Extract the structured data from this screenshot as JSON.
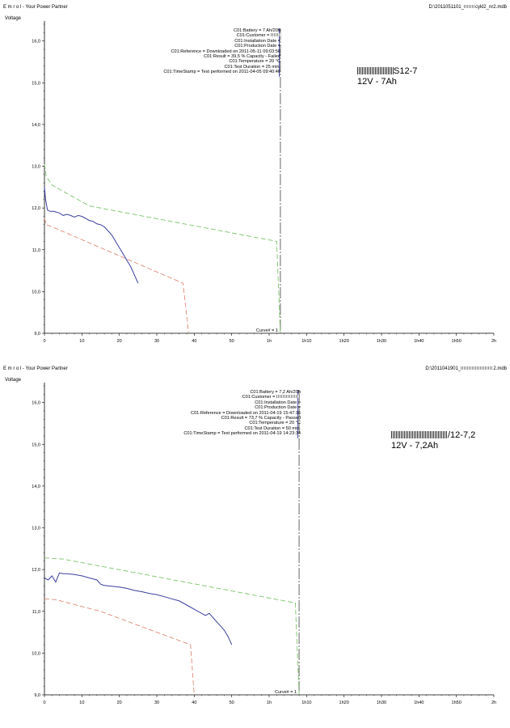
{
  "chart_data": [
    {
      "type": "line",
      "header_left": "E m r o l  -  Your Power Partner",
      "header_right": "D:\\2011051101_",
      "header_right_suffix": "cykl2_nr2.mdb",
      "ylabel": "Voltage",
      "ylim": [
        9.0,
        16.4
      ],
      "xlim": [
        0,
        120
      ],
      "y_ticks": [
        9,
        10,
        11,
        12,
        13,
        14,
        15,
        16
      ],
      "y_tick_labels": [
        "9,0",
        "10,0",
        "11,0",
        "12,0",
        "13,0",
        "14,0",
        "15,0",
        "16,0"
      ],
      "x_ticks": [
        0,
        10,
        20,
        30,
        40,
        50,
        60,
        70,
        80,
        90,
        100,
        110,
        120
      ],
      "x_tick_labels": [
        "0",
        "10",
        "20",
        "30",
        "40",
        "50",
        "1h",
        "1h10",
        "1h20",
        "1h30",
        "1h40",
        "1h50",
        "2h"
      ],
      "info_lines": [
        "C01:Battery = 7 Ah/20h",
        "C01:Customer = ",
        "C01:Installation Date = ",
        "C01:Production Date = ",
        "C01:Reference = Downloaded on 2011-05-11 09:03:56",
        "C01:Result = 39,5 % Capacity - Failed",
        "C01:Temperature = 20 °C",
        "C01:Test Duration = 25 min.",
        "C01:TimeStamp = Test performed on 2011-04-05 09:40:46"
      ],
      "curve_label": "Curve# = 1",
      "marker_x": 63,
      "handwritten_line1_suffix": "S12-7",
      "handwritten_line2": "12V - 7Ah",
      "series": [
        {
          "color": "#3b3fa0",
          "dash": "solid",
          "x": [
            0,
            0.3,
            0.8,
            1.5,
            2.5,
            4,
            5,
            6,
            7,
            8,
            9,
            10,
            11,
            12,
            13,
            14,
            15,
            16,
            17,
            18,
            19,
            20,
            21,
            22,
            23,
            24,
            25
          ],
          "y": [
            12.5,
            12.2,
            11.95,
            11.92,
            11.92,
            11.88,
            11.82,
            11.85,
            11.82,
            11.78,
            11.82,
            11.8,
            11.75,
            11.7,
            11.68,
            11.62,
            11.6,
            11.55,
            11.45,
            11.35,
            11.2,
            11.05,
            10.9,
            10.75,
            10.6,
            10.4,
            10.2
          ]
        },
        {
          "color": "#7cc46a",
          "dash": "dashed",
          "x": [
            0,
            0.5,
            2,
            12,
            62,
            63
          ],
          "y": [
            13.05,
            12.75,
            12.55,
            12.05,
            11.2,
            9.0
          ],
          "x_end_line": 63
        },
        {
          "color": "#e08a78",
          "dash": "dashed",
          "x": [
            0,
            0.5,
            2,
            37,
            38.5
          ],
          "y": [
            11.75,
            11.6,
            11.55,
            10.2,
            9.0
          ]
        }
      ]
    },
    {
      "type": "line",
      "header_left": "E m r o l  -  Your Power Partner",
      "header_right": "D:\\2011041901_",
      "header_right_suffix": "2.mdb",
      "ylabel": "Voltage",
      "ylim": [
        9.0,
        16.4
      ],
      "xlim": [
        0,
        120
      ],
      "y_ticks": [
        9,
        10,
        11,
        12,
        13,
        14,
        15,
        16
      ],
      "y_tick_labels": [
        "9,0",
        "10,0",
        "11,0",
        "12,0",
        "13,0",
        "14,0",
        "15,0",
        "16,0"
      ],
      "x_ticks": [
        0,
        10,
        20,
        30,
        40,
        50,
        60,
        70,
        80,
        90,
        100,
        110,
        120
      ],
      "x_tick_labels": [
        "0",
        "10",
        "20",
        "30",
        "40",
        "50",
        "1h",
        "1h10",
        "1h20",
        "1h30",
        "1h40",
        "1h50",
        "2h"
      ],
      "info_lines": [
        "C01:Battery = 7,2 Ah/20h",
        "C01:Customer = ",
        "C01:Installation Date = ",
        "C01:Production Date = ",
        "C01:Reference = Downloaded on 2011-04-19 15:47:16",
        "C01:Result = 73,7 % Capacity - Passed",
        "C01:Temperature = 20 °C",
        "C01:Test Duration = 50 min.",
        "C01:TimeStamp = Test performed on 2011-04-19 14:23:34"
      ],
      "curve_label": "Curve# = 1",
      "marker_x": 68,
      "handwritten_line1_suffix": "/12-7,2",
      "handwritten_line2": "12V - 7,2Ah",
      "series": [
        {
          "color": "#3b3fa0",
          "dash": "solid",
          "x": [
            0,
            1,
            2,
            3,
            4,
            5,
            6,
            8,
            10,
            12,
            14,
            15,
            16,
            18,
            20,
            22,
            24,
            26,
            28,
            30,
            32,
            34,
            36,
            38,
            40,
            41,
            42,
            43,
            44,
            45,
            46,
            47,
            48,
            49,
            50
          ],
          "y": [
            11.8,
            11.75,
            11.85,
            11.7,
            11.92,
            11.9,
            11.9,
            11.88,
            11.85,
            11.8,
            11.75,
            11.65,
            11.62,
            11.6,
            11.58,
            11.55,
            11.5,
            11.47,
            11.43,
            11.4,
            11.35,
            11.3,
            11.25,
            11.15,
            11.05,
            11.0,
            10.95,
            10.9,
            10.95,
            10.85,
            10.75,
            10.65,
            10.55,
            10.4,
            10.2
          ]
        },
        {
          "color": "#7cc46a",
          "dash": "dashed",
          "x": [
            0,
            5,
            67,
            68
          ],
          "y": [
            12.28,
            12.25,
            11.2,
            9.0
          ],
          "x_end_line": 68
        },
        {
          "color": "#e08a78",
          "dash": "dashed",
          "x": [
            0,
            3,
            15,
            39,
            40
          ],
          "y": [
            11.3,
            11.28,
            11.0,
            10.2,
            9.0
          ]
        }
      ]
    }
  ]
}
